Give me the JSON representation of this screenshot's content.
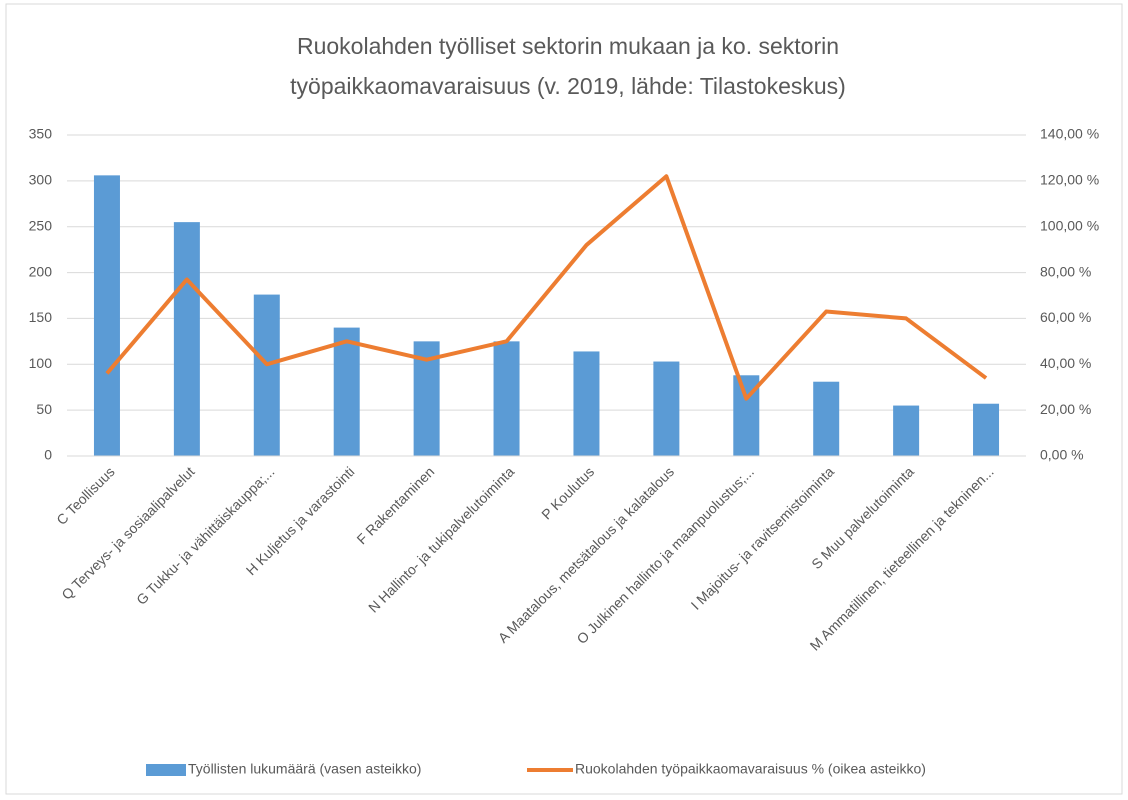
{
  "chart_data": {
    "type": "bar-line",
    "title": [
      "Ruokolahden työlliset sektorin mukaan ja ko. sektorin",
      "työpaikkaomavaraisuus (v. 2019, lähde: Tilastokeskus)"
    ],
    "categories": [
      "C Teollisuus",
      "Q Terveys- ja sosiaalipalvelut",
      "G Tukku- ja vähittäiskauppa;...",
      "H Kuljetus ja varastointi",
      "F Rakentaminen",
      "N Hallinto- ja tukipalvelutoiminta",
      "P Koulutus",
      "A Maatalous, metsätalous ja kalatalous",
      "O Julkinen hallinto ja maanpuolustus;...",
      "I Majoitus- ja ravitsemistoiminta",
      "S Muu palvelutoiminta",
      "M Ammatillinen, tieteellinen ja tekninen..."
    ],
    "series": [
      {
        "name": "Työllisten lukumäärä (vasen asteikko)",
        "type": "bar",
        "color": "#5b9bd5",
        "values": [
          306,
          255,
          176,
          140,
          125,
          125,
          114,
          103,
          88,
          81,
          55,
          57
        ]
      },
      {
        "name": "Ruokolahden työpaikkaomavaraisuus % (oikea asteikko)",
        "type": "line",
        "axis": "y2",
        "color": "#ed7d31",
        "values": [
          36,
          77,
          40,
          50,
          42,
          50,
          92,
          122,
          25,
          63,
          60,
          34
        ]
      }
    ],
    "ylim": [
      0,
      350
    ],
    "yticks": [
      0,
      50,
      100,
      150,
      200,
      250,
      300,
      350
    ],
    "y2lim": [
      0,
      140
    ],
    "y2ticks": [
      {
        "value": 0,
        "label": "0,00 %"
      },
      {
        "value": 20,
        "label": "20,00 %"
      },
      {
        "value": 40,
        "label": "40,00 %"
      },
      {
        "value": 60,
        "label": "60,00 %"
      },
      {
        "value": 80,
        "label": "80,00 %"
      },
      {
        "value": 100,
        "label": "100,00 %"
      },
      {
        "value": 120,
        "label": "120,00 %"
      },
      {
        "value": 140,
        "label": "140,00 %"
      }
    ],
    "grid": true,
    "legend": "bottom"
  }
}
